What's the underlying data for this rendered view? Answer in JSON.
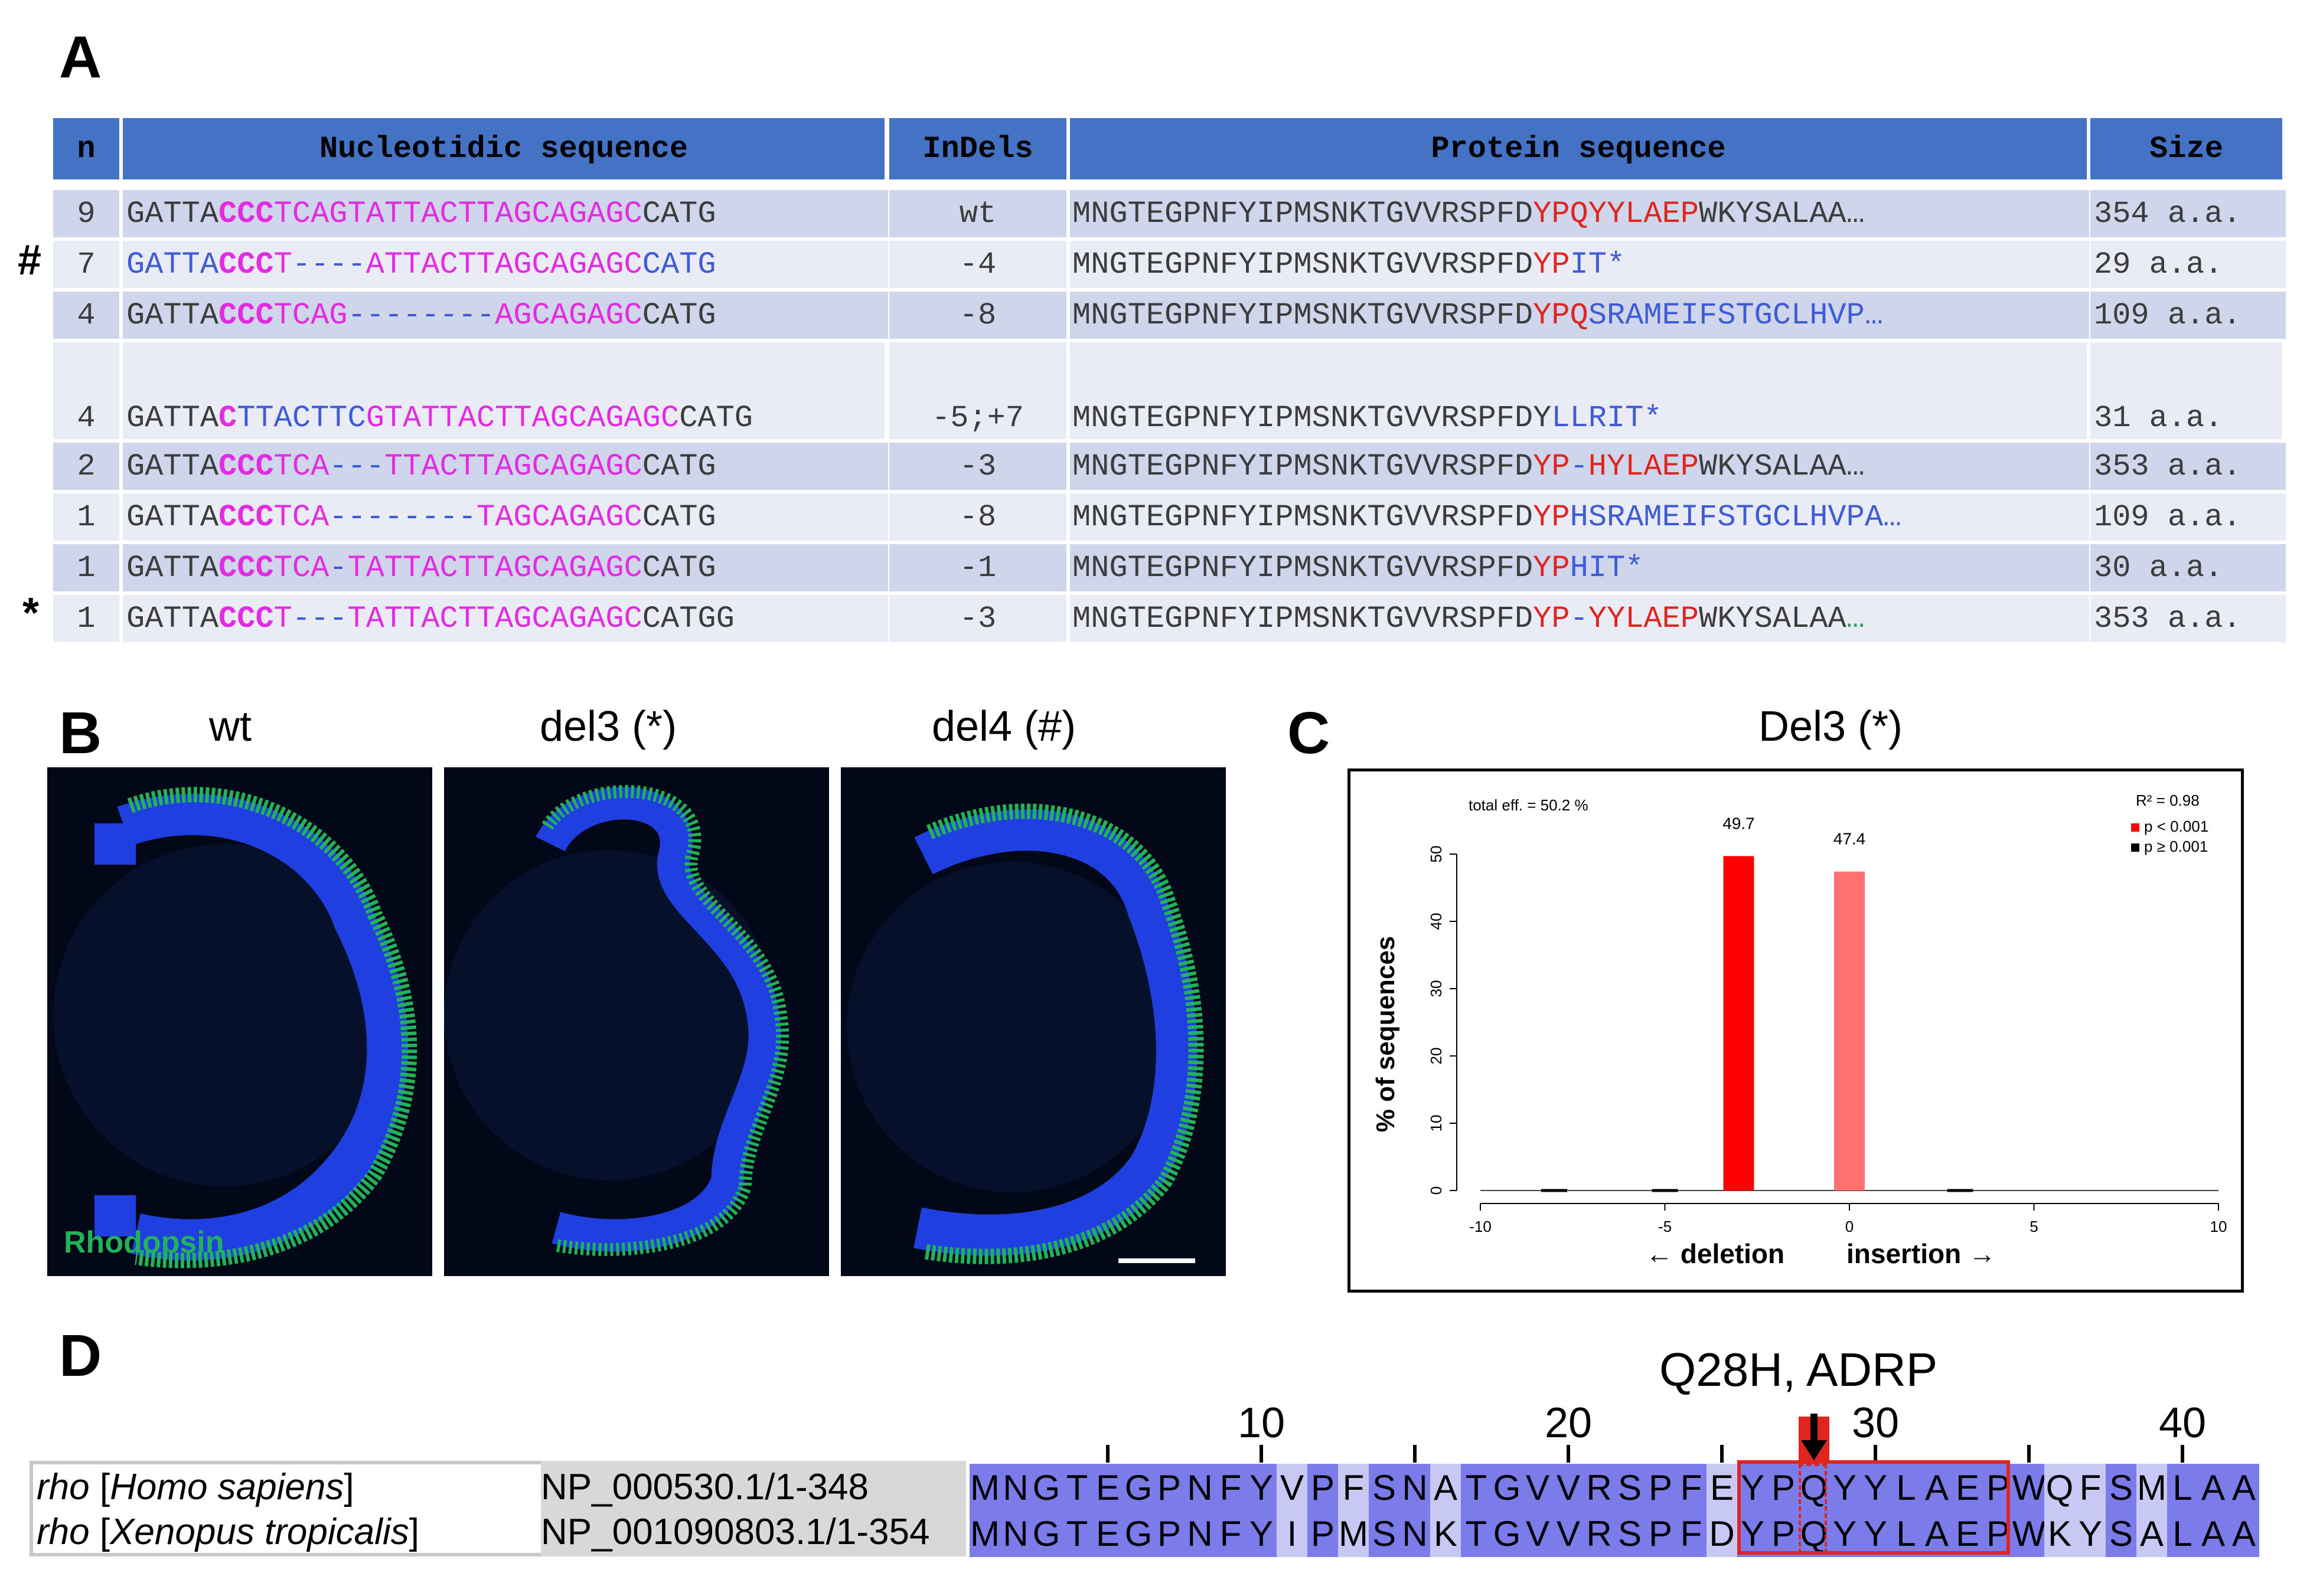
{
  "panels": {
    "a": "A",
    "b": "B",
    "c": "C",
    "d": "D"
  },
  "table": {
    "headers": {
      "n": "n",
      "nt": "Nucleotidic sequence",
      "indel": "InDels",
      "protein": "Protein sequence",
      "size": "Size"
    },
    "markers": {
      "hash": "#",
      "star": "*"
    },
    "rows": [
      {
        "n": "9",
        "nt": [
          [
            "k",
            "GATTA"
          ],
          [
            "mb",
            "CCC"
          ],
          [
            "m",
            "TCAGTATTACTTAGCAGAGC"
          ],
          [
            "k",
            "CATG"
          ]
        ],
        "indel": "wt",
        "pr": [
          [
            "k",
            "MNGTEGPNFYIPMSNKTGVVRSPFD"
          ],
          [
            "r",
            "YPQYYLAEP"
          ],
          [
            "k",
            "WKYSALAA…"
          ]
        ],
        "size": "354 a.a."
      },
      {
        "n": "7",
        "nt": [
          [
            "b",
            "GATTA"
          ],
          [
            "mb",
            "CCC"
          ],
          [
            "m",
            "T"
          ],
          [
            "b",
            "----"
          ],
          [
            "m",
            "ATTACTTAGCAGAGC"
          ],
          [
            "b",
            "CATG"
          ]
        ],
        "indel": "-4",
        "pr": [
          [
            "k",
            "MNGTEGPNFYIPMSNKTGVVRSPFD"
          ],
          [
            "r",
            "YP"
          ],
          [
            "b",
            "IT*"
          ]
        ],
        "size": "29 a.a."
      },
      {
        "n": "4",
        "nt": [
          [
            "k",
            "GATTA"
          ],
          [
            "mb",
            "CCC"
          ],
          [
            "m",
            "TCAG"
          ],
          [
            "b",
            "--------"
          ],
          [
            "m",
            "AGCAGAGC"
          ],
          [
            "k",
            "CATG"
          ]
        ],
        "indel": "-8",
        "pr": [
          [
            "k",
            "MNGTEGPNFYIPMSNKTGVVRSPFD"
          ],
          [
            "r",
            "YPQ"
          ],
          [
            "b",
            "SRAMEIFSTGCLHVP…"
          ]
        ],
        "size": "109 a.a."
      },
      {
        "n": "4",
        "nt": [
          [
            "k",
            "GATTA"
          ],
          [
            "mb",
            "C"
          ],
          [
            "b",
            "TTACTTC"
          ],
          [
            "m",
            "GTATTACTTAGCAGAGC"
          ],
          [
            "k",
            "CATG"
          ]
        ],
        "indel": "-5;+7",
        "pr": [
          [
            "k",
            "MNGTEGPNFYIPMSNKTGVVRSPFDY"
          ],
          [
            "b",
            "LLRIT*"
          ]
        ],
        "size": "31 a.a."
      },
      {
        "n": "2",
        "nt": [
          [
            "k",
            "GATTA"
          ],
          [
            "mb",
            "CCC"
          ],
          [
            "m",
            "TCA"
          ],
          [
            "b",
            "---"
          ],
          [
            "m",
            "TTACTTAGCAGAGC"
          ],
          [
            "k",
            "CATG"
          ]
        ],
        "indel": "-3",
        "pr": [
          [
            "k",
            "MNGTEGPNFYIPMSNKTGVVRSPFD"
          ],
          [
            "r",
            "YP"
          ],
          [
            "b",
            "-"
          ],
          [
            "r",
            "HYLAEP"
          ],
          [
            "k",
            "WKYSALAA…"
          ]
        ],
        "size": "353 a.a."
      },
      {
        "n": "1",
        "nt": [
          [
            "k",
            "GATTA"
          ],
          [
            "mb",
            "CCC"
          ],
          [
            "m",
            "TCA"
          ],
          [
            "b",
            "--------"
          ],
          [
            "m",
            "TAGCAGAGC"
          ],
          [
            "k",
            "CATG"
          ]
        ],
        "indel": "-8",
        "pr": [
          [
            "k",
            "MNGTEGPNFYIPMSNKTGVVRSPFD"
          ],
          [
            "r",
            "YP"
          ],
          [
            "b",
            "HSRAMEIFSTGCLHVPA…"
          ]
        ],
        "size": "109 a.a."
      },
      {
        "n": "1",
        "nt": [
          [
            "k",
            "GATTA"
          ],
          [
            "mb",
            "CCC"
          ],
          [
            "m",
            "TCA"
          ],
          [
            "b",
            "-"
          ],
          [
            "m",
            "TATTACTTAGCAGAGC"
          ],
          [
            "k",
            "CATG"
          ]
        ],
        "indel": "-1",
        "pr": [
          [
            "k",
            "MNGTEGPNFYIPMSNKTGVVRSPFD"
          ],
          [
            "r",
            "YP"
          ],
          [
            "b",
            "HIT*"
          ]
        ],
        "size": "30 a.a."
      },
      {
        "n": "1",
        "nt": [
          [
            "k",
            "GATTA"
          ],
          [
            "mb",
            "CCC"
          ],
          [
            "m",
            "T"
          ],
          [
            "b",
            "---"
          ],
          [
            "m",
            "TATTACTTAGCAGAGC"
          ],
          [
            "k",
            "CATGG"
          ]
        ],
        "indel": "-3",
        "pr": [
          [
            "k",
            "MNGTEGPNFYIPMSNKTGVVRSPFD"
          ],
          [
            "r",
            "YP"
          ],
          [
            "b",
            "-"
          ],
          [
            "r",
            "YYLAEP"
          ],
          [
            "k",
            "WKYSALAA"
          ],
          [
            "g",
            "…"
          ]
        ],
        "size": "353 a.a."
      }
    ]
  },
  "panel_b": {
    "titles": [
      "wt",
      "del3 (*)",
      "del4 (#)"
    ],
    "stain_label": "Rhodopsin",
    "colors": {
      "stain": "#22b35a",
      "nuclei": "#1f3fe0",
      "background": "#030818"
    }
  },
  "chart_data": {
    "type": "bar",
    "title": "Del3 (*)",
    "annotation": "total eff. = 50.2 %",
    "r2": "R² = 0.98",
    "legend": [
      {
        "label": "p < 0.001",
        "color": "#ff0000"
      },
      {
        "label": "p ≥ 0.001",
        "color": "#000000"
      }
    ],
    "legend_position": "top-right",
    "ylabel": "% of sequences",
    "xlabel_left": "← deletion",
    "xlabel_right": "insertion →",
    "xlim": [
      -10,
      10
    ],
    "ylim": [
      0,
      50
    ],
    "xticks": [
      -10,
      -5,
      0,
      5,
      10
    ],
    "yticks": [
      0,
      10,
      20,
      30,
      40,
      50
    ],
    "bars": [
      {
        "x": -3,
        "value": 49.7,
        "label": "49.7",
        "color": "#ff0000"
      },
      {
        "x": 0,
        "value": 47.4,
        "label": "47.4",
        "color": "#ff7070"
      }
    ],
    "minor_marks": [
      -8,
      -5,
      3
    ]
  },
  "panel_d": {
    "mutation_label": "Q28H, ADRP",
    "ruler": [
      {
        "pos": 10,
        "label": "10"
      },
      {
        "pos": 20,
        "label": "20"
      },
      {
        "pos": 30,
        "label": "30"
      },
      {
        "pos": 40,
        "label": "40"
      }
    ],
    "tick_positions": [
      5,
      10,
      15,
      20,
      25,
      30,
      35,
      40
    ],
    "species": [
      {
        "gene": "rho",
        "name": "Homo sapiens",
        "accession": "NP_000530.1/1-348",
        "seq": "MNGTEGPNFYVPFSNATGVVRSPFEYPQYYLAEPWQFSMLAA"
      },
      {
        "gene": "rho",
        "name": "Xenopus tropicalis",
        "accession": "NP_001090803.1/1-354",
        "seq": "MNGTEGPNFYIPMSNKTGVVRSPFDYPQYYLAEPWKYSALAA"
      }
    ],
    "colors": {
      "conserved": "#7b7bea",
      "variable": "#c8c8f4",
      "box": "#e0241f"
    }
  }
}
